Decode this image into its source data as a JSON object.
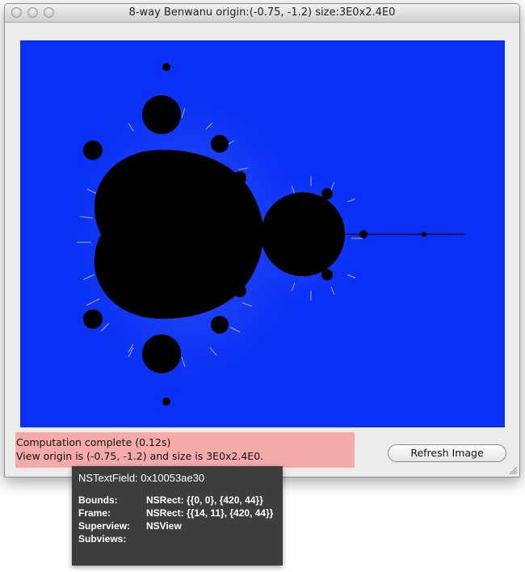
{
  "window": {
    "title": "8-way Benwanu origin:(-0.75, -1.2) size:3E0x2.4E0"
  },
  "canvas": {
    "background_color": "#0a30f5",
    "set_color": "#000000"
  },
  "status": {
    "line1": "Computation complete (0.12s)",
    "line2": "View origin is (-0.75, -1.2) and size is 3E0x2.4E0.",
    "background_color": "#f5aaaa"
  },
  "buttons": {
    "refresh_label": "Refresh Image"
  },
  "tooltip": {
    "heading": "NSTextField: 0x10053ae30",
    "rows": [
      {
        "label": "Bounds:",
        "value": "NSRect: {{0, 0}, {420, 44}}"
      },
      {
        "label": "Frame:",
        "value": "NSRect: {{14, 11}, {420, 44}}"
      },
      {
        "label": "Superview:",
        "value": "NSView"
      },
      {
        "label": "Subviews:",
        "value": ""
      }
    ]
  }
}
